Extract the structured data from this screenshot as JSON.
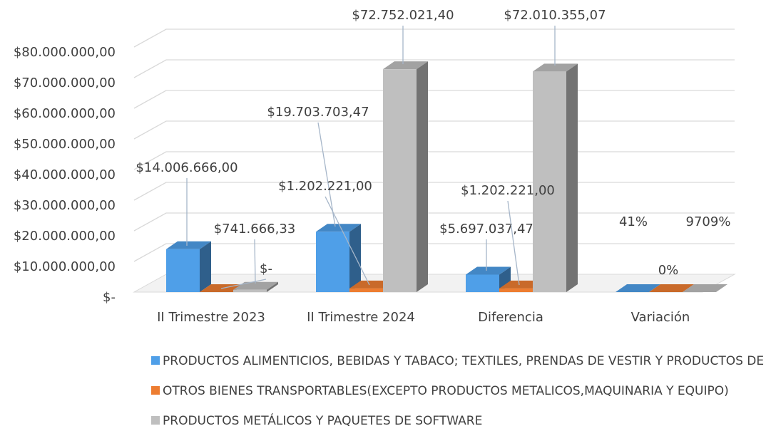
{
  "chart_data": {
    "type": "bar3d",
    "categories": [
      "II Trimestre 2023",
      "II Trimestre 2024",
      "Diferencia",
      "Variación"
    ],
    "series": [
      {
        "name": "PRODUCTOS ALIMENTICIOS, BEBIDAS Y TABACO; TEXTILES, PRENDAS DE VESTIR Y PRODUCTOS DE CUERO",
        "color": "#4f9fe8",
        "values": [
          14006666.0,
          19703703.47,
          5697037.47,
          0.41
        ],
        "value_labels": [
          "$14.006.666,00",
          "$19.703.703,47",
          "$5.697.037,47",
          "41%"
        ]
      },
      {
        "name": "OTROS BIENES TRANSPORTABLES(EXCEPTO PRODUCTOS METALICOS,MAQUINARIA Y EQUIPO)",
        "color": "#ed7d31",
        "values": [
          0,
          1202221.0,
          1202221.0,
          0
        ],
        "value_labels": [
          "$-",
          "$1.202.221,00",
          "$1.202.221,00",
          "0%"
        ]
      },
      {
        "name": "PRODUCTOS METÁLICOS Y PAQUETES DE SOFTWARE",
        "color": "#bfbfbf",
        "values": [
          741666.33,
          72752021.4,
          72010355.07,
          97.09
        ],
        "value_labels": [
          "$741.666,33",
          "$72.752.021,40",
          "$72.010.355,07",
          "9709%"
        ]
      }
    ],
    "ylim": [
      0,
      80000000
    ],
    "yticks": [
      {
        "value": 0,
        "label": "$-"
      },
      {
        "value": 10000000,
        "label": "$10.000.000,00"
      },
      {
        "value": 20000000,
        "label": "$20.000.000,00"
      },
      {
        "value": 30000000,
        "label": "$30.000.000,00"
      },
      {
        "value": 40000000,
        "label": "$40.000.000,00"
      },
      {
        "value": 50000000,
        "label": "$50.000.000,00"
      },
      {
        "value": 60000000,
        "label": "$60.000.000,00"
      },
      {
        "value": 70000000,
        "label": "$70.000.000,00"
      },
      {
        "value": 80000000,
        "label": "$80.000.000,00"
      }
    ],
    "grid": true
  }
}
